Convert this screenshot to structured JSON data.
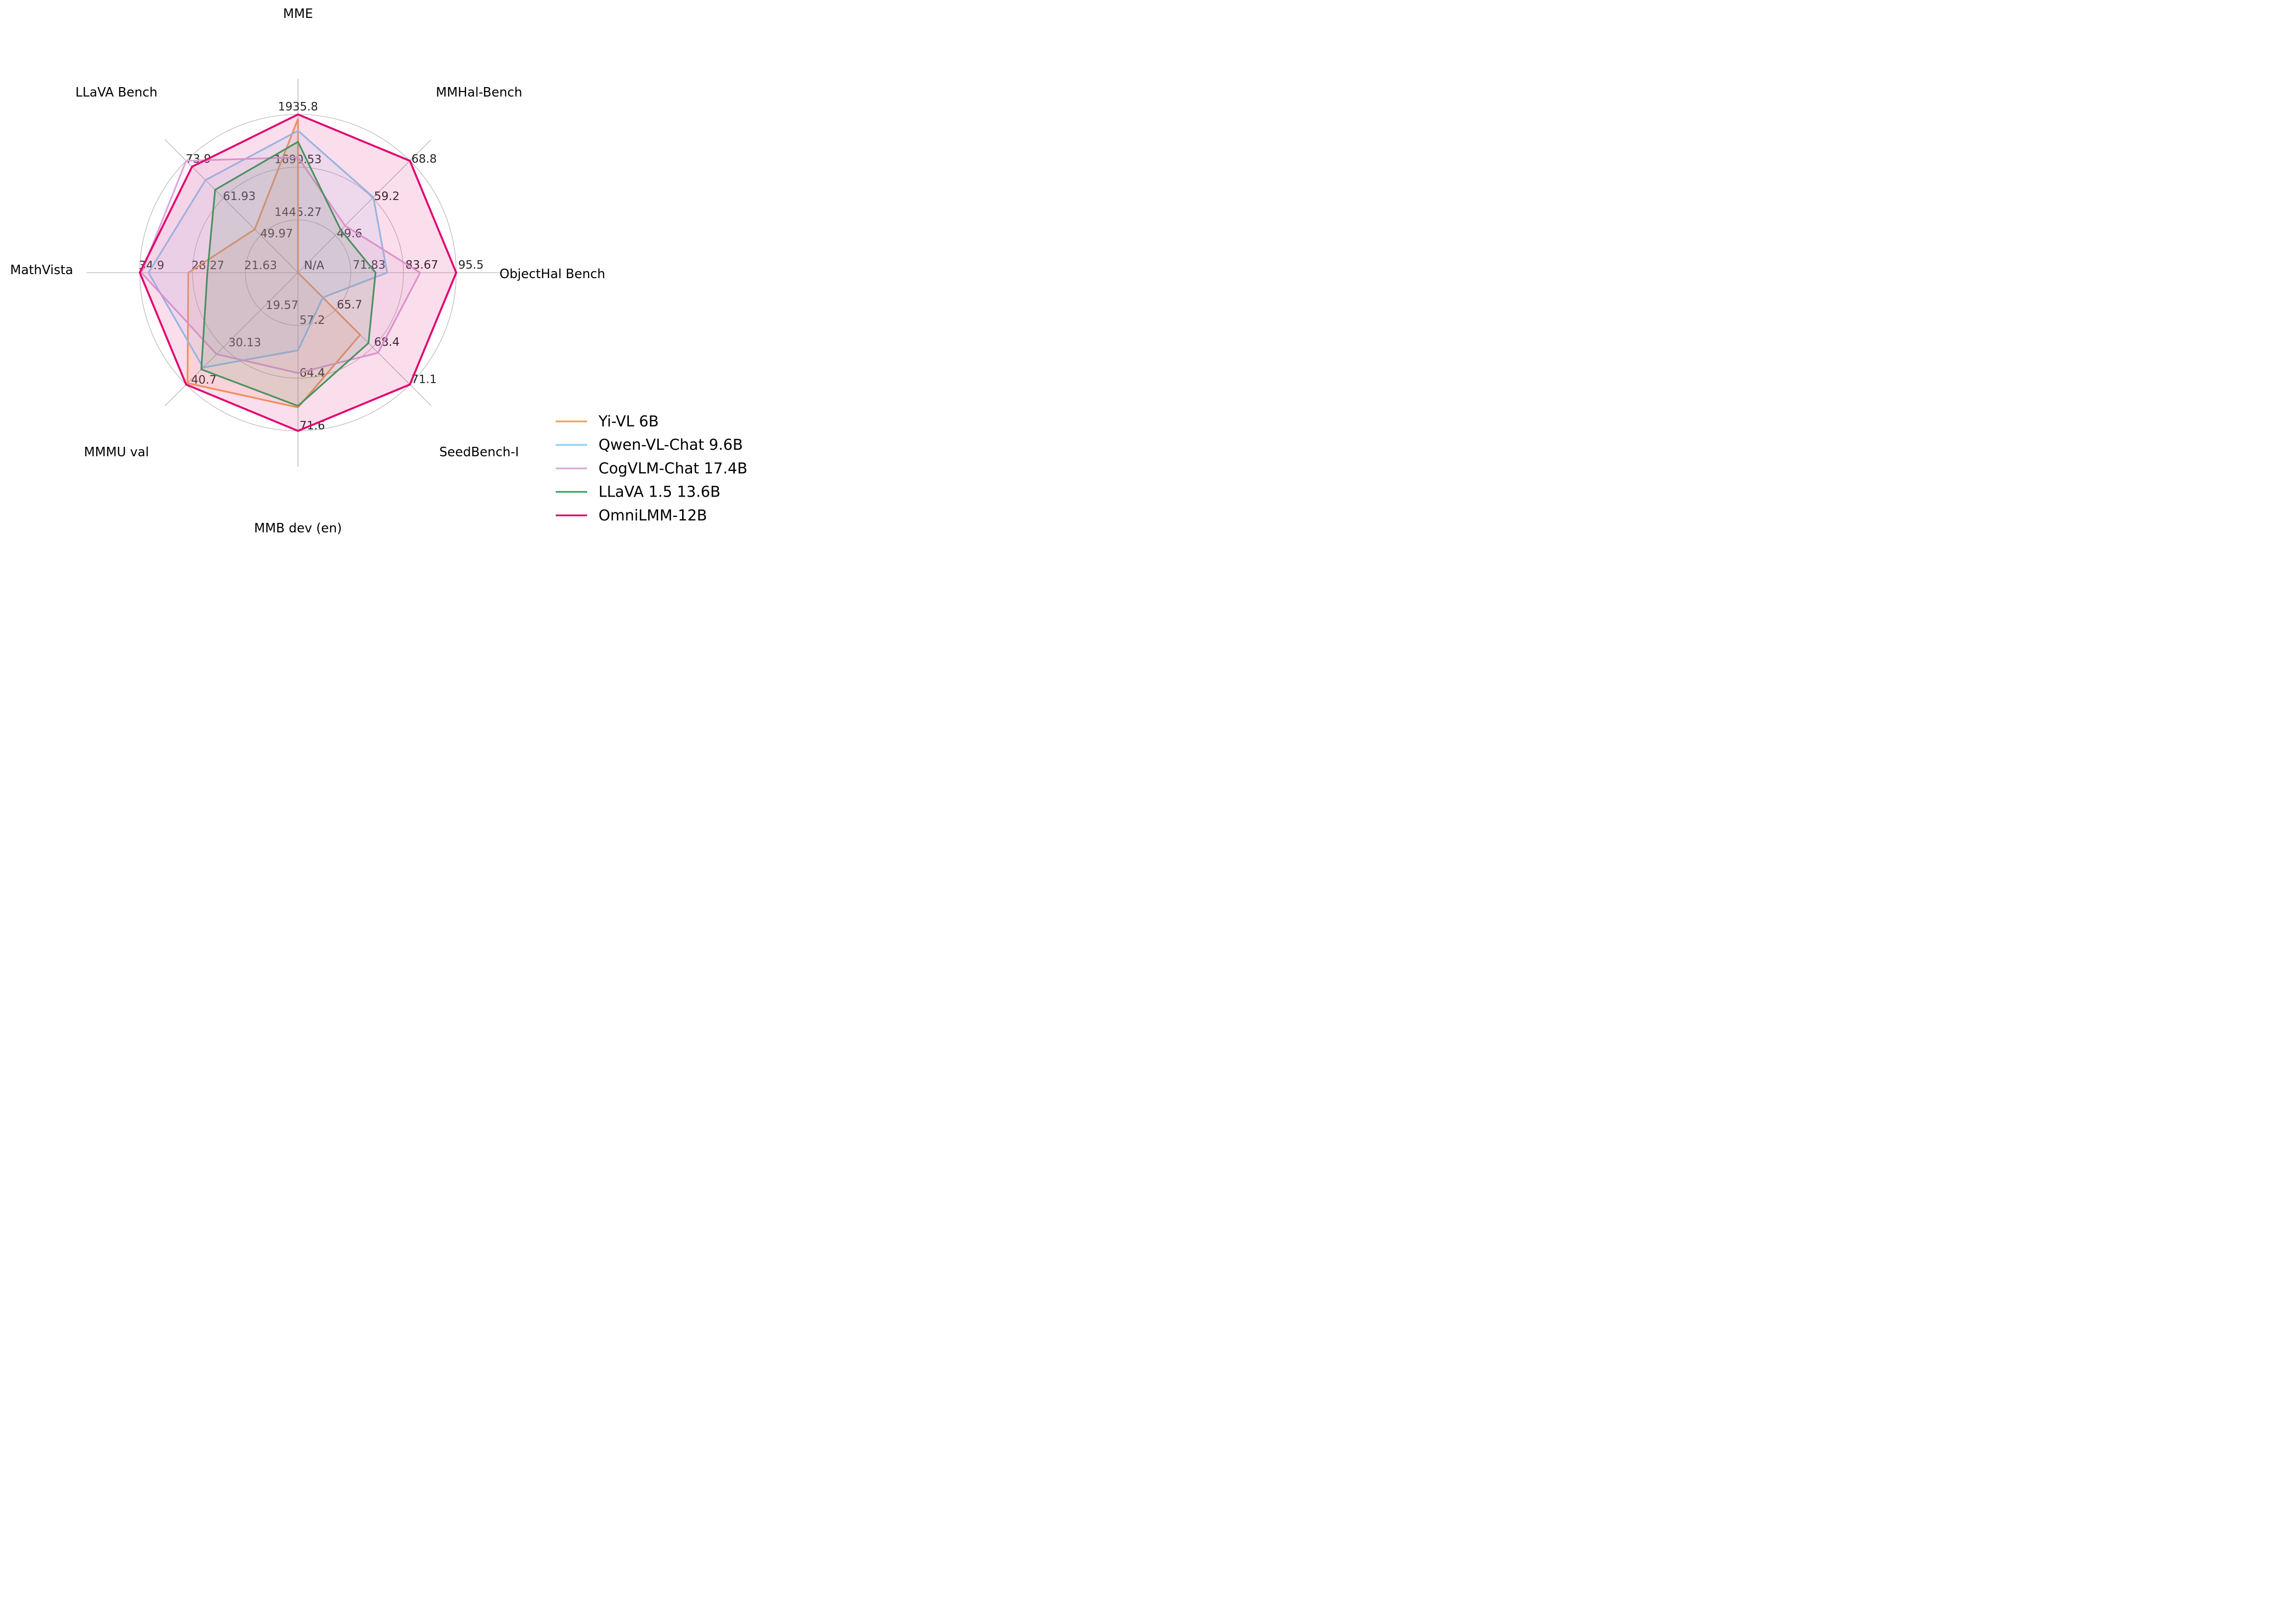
{
  "chart_data": {
    "type": "radar",
    "title": "",
    "grid": true,
    "legend_position": "lower right",
    "n_rings": 3,
    "center_label": "N/A",
    "axes": [
      {
        "label": "MME",
        "min": 1200,
        "max": 1935.8,
        "tick_labels": [
          "1445.27",
          "1690.53",
          "1935.8"
        ]
      },
      {
        "label": "MMHal-Bench",
        "min": 40,
        "max": 68.8,
        "tick_labels": [
          "49.6",
          "59.2",
          "68.8"
        ]
      },
      {
        "label": "ObjectHal Bench",
        "min": 60,
        "max": 95.5,
        "tick_labels": [
          "71.83",
          "83.67",
          "95.5"
        ],
        "center_label": "N/A"
      },
      {
        "label": "SeedBench-I",
        "min": 63,
        "max": 71.1,
        "tick_labels": [
          "65.7",
          "68.4",
          "71.1"
        ]
      },
      {
        "label": "MMB dev (en)",
        "min": 50,
        "max": 71.6,
        "tick_labels": [
          "57.2",
          "64.4",
          "71.6"
        ]
      },
      {
        "label": "MMMU val",
        "min": 9,
        "max": 40.7,
        "tick_labels": [
          "19.57",
          "30.13",
          "40.7"
        ]
      },
      {
        "label": "MathVista",
        "min": 15,
        "max": 34.9,
        "tick_labels": [
          "21.63",
          "28.27",
          "34.9"
        ]
      },
      {
        "label": "LLaVA Bench",
        "min": 38,
        "max": 73.9,
        "tick_labels": [
          "49.97",
          "61.93",
          "73.9"
        ]
      }
    ],
    "series": [
      {
        "name": "Yi-VL 6B",
        "color": "#F2A25C",
        "values": [
          1915.1,
          null,
          null,
          67.5,
          68.4,
          40.3,
          28.8,
          51.9
        ]
      },
      {
        "name": "Qwen-VL-Chat 9.6B",
        "color": "#8DCFF4",
        "values": [
          1860.0,
          59.4,
          80.0,
          64.8,
          60.6,
          35.9,
          33.8,
          67.7
        ]
      },
      {
        "name": "CogVLM-Chat 17.4B",
        "color": "#DBA7DC",
        "values": [
          1736.6,
          52.1,
          87.4,
          68.8,
          63.7,
          32.1,
          34.7,
          73.9
        ]
      },
      {
        "name": "LLaVA 1.5 13.6B",
        "color": "#35A75F",
        "values": [
          1808.4,
          51.0,
          77.4,
          68.1,
          68.2,
          36.4,
          26.4,
          64.6
        ]
      },
      {
        "name": "OmniLMM-12B",
        "color": "#E3006E",
        "values": [
          1935.8,
          68.8,
          95.5,
          71.1,
          71.6,
          40.7,
          34.9,
          72.0
        ]
      }
    ],
    "colors": {
      "background": "#ffffff",
      "grid_line": "#ADADAD",
      "spoke_line": "#A3A3A3",
      "tick_text": "#262626",
      "title_text": "#000000",
      "legend_text": "#000000"
    }
  }
}
